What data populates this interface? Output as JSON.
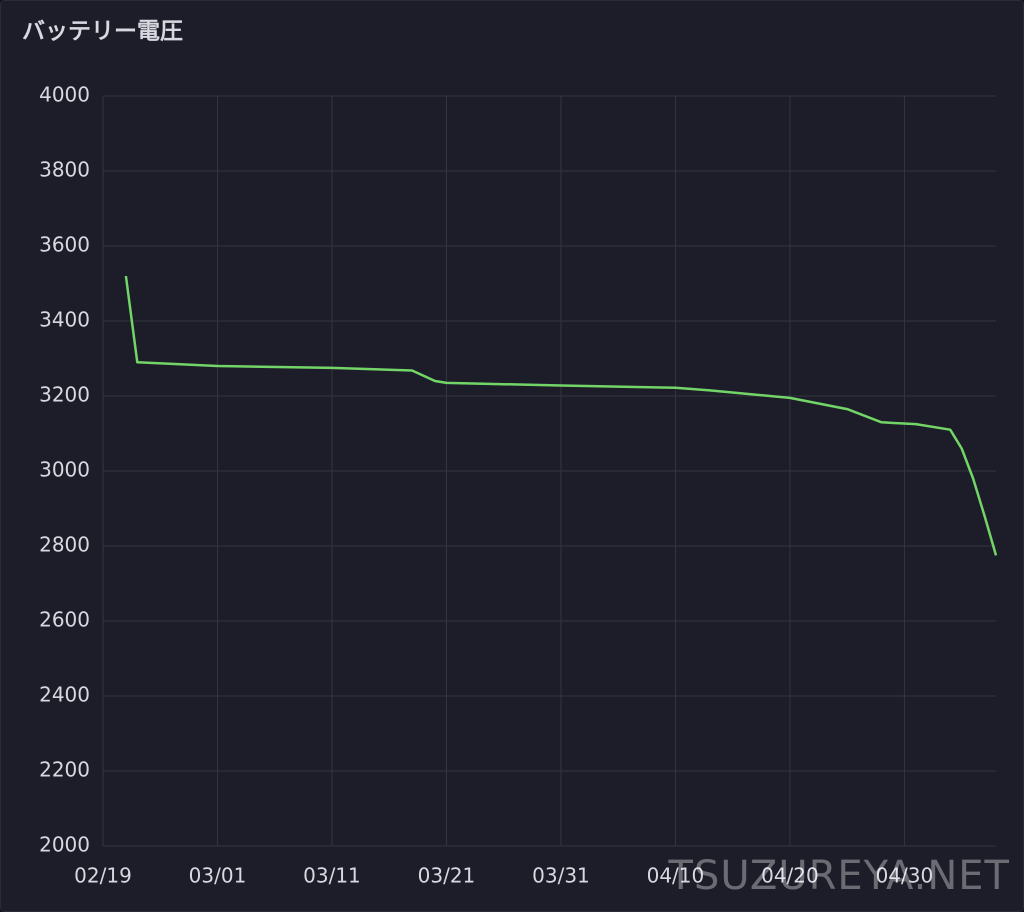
{
  "chart_data": {
    "type": "line",
    "title": "バッテリー電圧",
    "watermark": "TSUZUREYA.NET",
    "x": [
      "02/21",
      "02/22",
      "03/01",
      "03/11",
      "03/18",
      "03/20",
      "03/21",
      "03/31",
      "04/10",
      "04/13",
      "04/20",
      "04/25",
      "04/28",
      "05/01",
      "05/04",
      "05/05",
      "05/06",
      "05/07",
      "05/08"
    ],
    "series": [
      {
        "name": "バッテリー電圧",
        "color": "#73d568",
        "values": [
          3520,
          3290,
          3280,
          3275,
          3268,
          3240,
          3235,
          3228,
          3222,
          3215,
          3195,
          3165,
          3130,
          3125,
          3110,
          3060,
          2980,
          2880,
          2775
        ]
      }
    ],
    "xlim": [
      "02/19",
      "05/08"
    ],
    "xticks": [
      "02/19",
      "03/01",
      "03/11",
      "03/21",
      "03/31",
      "04/10",
      "04/20",
      "04/30"
    ],
    "ylim": [
      2000,
      4000
    ],
    "yticks": [
      2000,
      2200,
      2400,
      2600,
      2800,
      3000,
      3200,
      3400,
      3600,
      3800,
      4000
    ],
    "grid": true
  }
}
